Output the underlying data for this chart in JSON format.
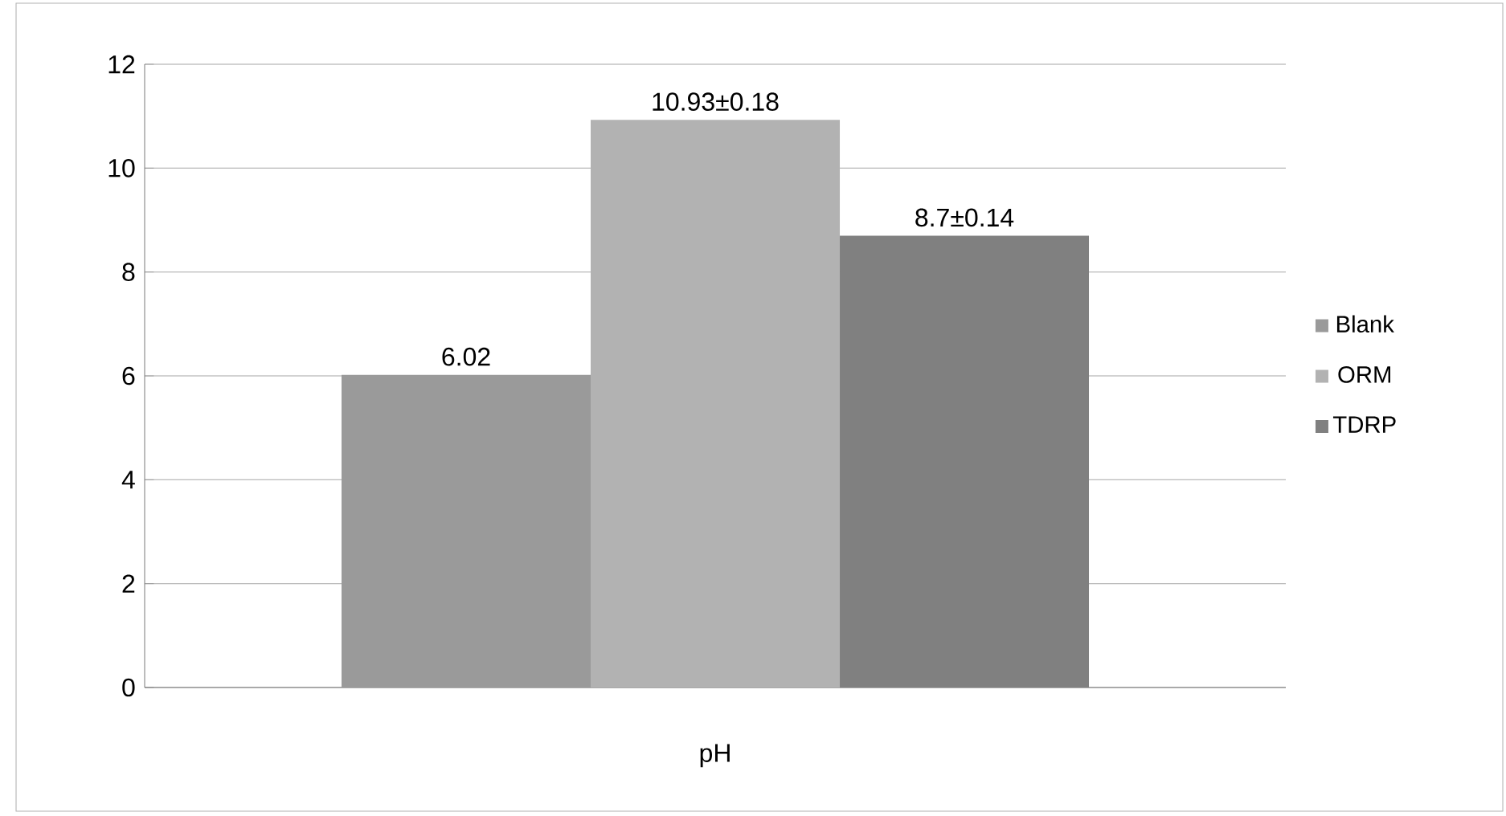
{
  "chart_data": {
    "type": "bar",
    "categories": [
      "pH"
    ],
    "series": [
      {
        "name": "Blank",
        "color": "#9a9a9a",
        "values": [
          6.02
        ],
        "value_labels": [
          "6.02"
        ]
      },
      {
        "name": "ORM",
        "color": "#b2b2b2",
        "values": [
          10.93
        ],
        "value_labels": [
          "10.93±0.18"
        ]
      },
      {
        "name": "TDRP",
        "color": "#808080",
        "values": [
          8.7
        ],
        "value_labels": [
          "8.7±0.14"
        ]
      }
    ],
    "ylim": [
      0,
      12
    ],
    "yticks": [
      0,
      2,
      4,
      6,
      8,
      10,
      12
    ],
    "grid": "y",
    "legend": "right"
  }
}
